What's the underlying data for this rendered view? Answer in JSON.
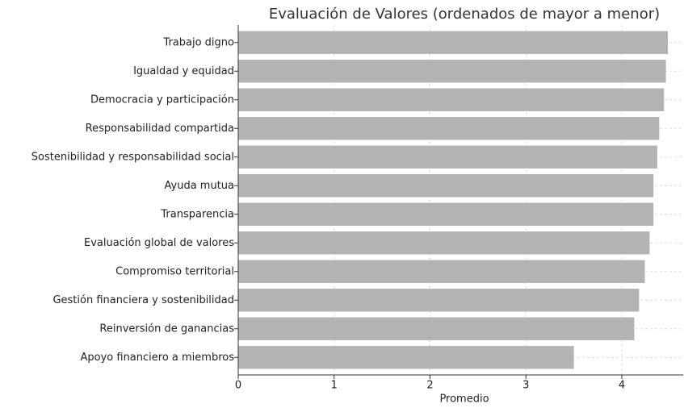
{
  "chart_data": {
    "type": "barh",
    "title": "Evaluación de Valores (ordenados de mayor a menor)",
    "xlabel": "Promedio",
    "categories": [
      "Trabajo digno",
      "Igualdad y equidad",
      "Democracia y participación",
      "Responsabilidad compartida",
      "Sostenibilidad y responsabilidad social",
      "Ayuda mutua",
      "Transparencia",
      "Evaluación global de valores",
      "Compromiso territorial",
      "Gestión financiera y sostenibilidad",
      "Reinversión de ganancias",
      "Apoyo financiero a miembros"
    ],
    "values": [
      4.48,
      4.46,
      4.44,
      4.39,
      4.37,
      4.33,
      4.33,
      4.29,
      4.24,
      4.18,
      4.13,
      3.5
    ],
    "color": "#b3b3b3",
    "xlim": [
      0,
      4.64
    ],
    "xticks": [
      0,
      1,
      2,
      3,
      4
    ],
    "grid": true
  }
}
